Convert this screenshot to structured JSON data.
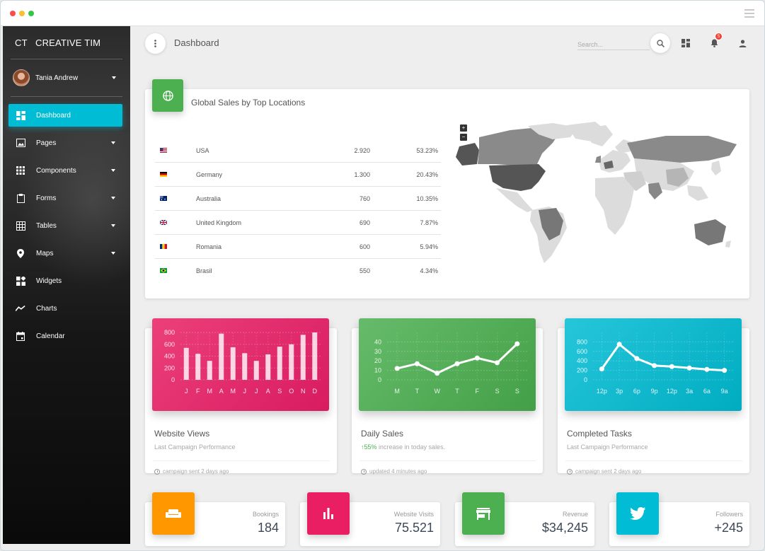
{
  "brand": {
    "mini": "CT",
    "name": "CREATIVE TIM"
  },
  "user": {
    "name": "Tania Andrew"
  },
  "nav": [
    {
      "label": "Dashboard",
      "icon": "dashboard-icon",
      "active": true,
      "caret": false
    },
    {
      "label": "Pages",
      "icon": "image-icon",
      "active": false,
      "caret": true
    },
    {
      "label": "Components",
      "icon": "apps-icon",
      "active": false,
      "caret": true
    },
    {
      "label": "Forms",
      "icon": "clipboard-icon",
      "active": false,
      "caret": true
    },
    {
      "label": "Tables",
      "icon": "grid-icon",
      "active": false,
      "caret": true
    },
    {
      "label": "Maps",
      "icon": "place-icon",
      "active": false,
      "caret": true
    },
    {
      "label": "Widgets",
      "icon": "widgets-icon",
      "active": false,
      "caret": false
    },
    {
      "label": "Charts",
      "icon": "timeline-icon",
      "active": false,
      "caret": false
    },
    {
      "label": "Calendar",
      "icon": "calendar-icon",
      "active": false,
      "caret": false
    }
  ],
  "topbar": {
    "title": "Dashboard",
    "search_placeholder": "Search...",
    "notifications": "5"
  },
  "sales": {
    "title": "Global Sales by Top Locations",
    "rows": [
      {
        "country": "USA",
        "count": "2.920",
        "pct": "53.23%",
        "flag": "us"
      },
      {
        "country": "Germany",
        "count": "1.300",
        "pct": "20.43%",
        "flag": "de"
      },
      {
        "country": "Australia",
        "count": "760",
        "pct": "10.35%",
        "flag": "au"
      },
      {
        "country": "United Kingdom",
        "count": "690",
        "pct": "7.87%",
        "flag": "gb"
      },
      {
        "country": "Romania",
        "count": "600",
        "pct": "5.94%",
        "flag": "ro"
      },
      {
        "country": "Brasil",
        "count": "550",
        "pct": "4.34%",
        "flag": "br"
      }
    ],
    "map_zoom_in": "+",
    "map_zoom_out": "−"
  },
  "cards": {
    "views": {
      "title": "Website Views",
      "subtitle": "Last Campaign Performance",
      "footer": "campaign sent 2 days ago",
      "color": "#e91e63"
    },
    "daily": {
      "title": "Daily Sales",
      "subtitle_pct": "55%",
      "subtitle_rest": " increase in today sales.",
      "footer": "updated 4 minutes ago",
      "color": "#4caf50"
    },
    "tasks": {
      "title": "Completed Tasks",
      "subtitle": "Last Campaign Performance",
      "footer": "campaign sent 2 days ago",
      "color": "#00bcd4"
    }
  },
  "chart_data": [
    {
      "type": "bar",
      "categories": [
        "J",
        "F",
        "M",
        "A",
        "M",
        "J",
        "J",
        "A",
        "S",
        "O",
        "N",
        "D"
      ],
      "values": [
        540,
        440,
        320,
        780,
        550,
        450,
        320,
        430,
        560,
        600,
        760,
        890
      ],
      "ylim": [
        0,
        800
      ],
      "yticks": [
        "800",
        "600",
        "400",
        "200",
        "0"
      ]
    },
    {
      "type": "line",
      "categories": [
        "M",
        "T",
        "W",
        "T",
        "F",
        "S",
        "S"
      ],
      "values": [
        12,
        17,
        7,
        17,
        23,
        18,
        38
      ],
      "ylim": [
        0,
        50
      ],
      "yticks": [
        "40",
        "30",
        "20",
        "10",
        "0"
      ]
    },
    {
      "type": "line",
      "categories": [
        "12p",
        "3p",
        "6p",
        "9p",
        "12p",
        "3a",
        "6a",
        "9a"
      ],
      "values": [
        230,
        750,
        450,
        300,
        280,
        250,
        220,
        200
      ],
      "ylim": [
        0,
        1000
      ],
      "yticks": [
        "800",
        "600",
        "400",
        "200",
        "0"
      ]
    }
  ],
  "stats": [
    {
      "label": "Bookings",
      "value": "184",
      "icon": "weekend-icon",
      "color": "#ff9800"
    },
    {
      "label": "Website Visits",
      "value": "75.521",
      "icon": "equalizer-icon",
      "color": "#e91e63"
    },
    {
      "label": "Revenue",
      "value": "$34,245",
      "icon": "store-icon",
      "color": "#4caf50"
    },
    {
      "label": "Followers",
      "value": "+245",
      "icon": "twitter-icon",
      "color": "#00bcd4"
    }
  ],
  "colors": {
    "accent": "#00bcd4",
    "sidebar_bg": "#1a1a1a"
  }
}
